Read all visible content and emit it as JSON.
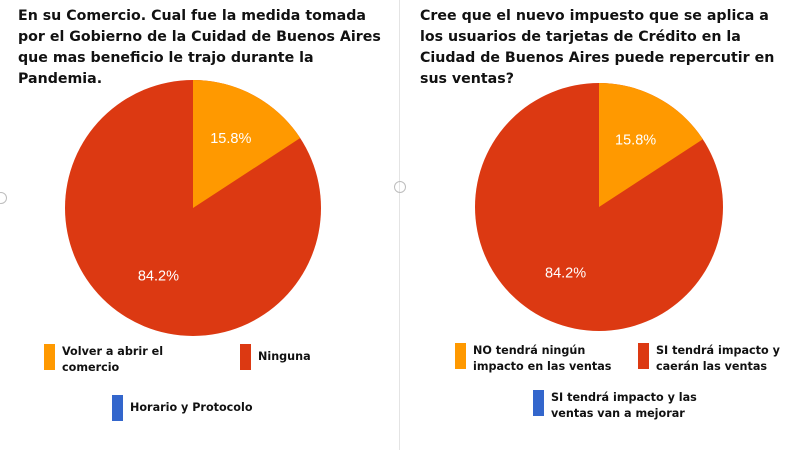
{
  "chart_data": [
    {
      "type": "pie",
      "title": "En su Comercio. Cual fue la medida tomada por el Gobierno de la Cuidad de Buenos Aires  que mas beneficio le trajo durante la Pandemia.",
      "categories": [
        "Volver a abrir el comercio",
        "Ninguna",
        "Horario y Protocolo"
      ],
      "values": [
        15.8,
        84.2,
        0
      ],
      "data_labels": [
        "15.8%",
        "84.2%",
        ""
      ],
      "colors": [
        "#ff9900",
        "#dc3912",
        "#3366cc"
      ],
      "legend": [
        "Volver a abrir el comercio",
        "Ninguna",
        "Horario y Protocolo"
      ],
      "legend_position": "bottom"
    },
    {
      "type": "pie",
      "title": "Cree que el nuevo impuesto que se aplica a los usuarios de tarjetas de Crédito en la Ciudad de Buenos Aires puede repercutir en sus ventas?",
      "categories": [
        "NO tendrá ningún impacto en las ventas",
        "SI tendrá impacto y caerán las ventas",
        "SI tendrá impacto y las ventas van a mejorar"
      ],
      "values": [
        15.8,
        84.2,
        0
      ],
      "data_labels": [
        "15.8%",
        "84.2%",
        ""
      ],
      "colors": [
        "#ff9900",
        "#dc3912",
        "#3366cc"
      ],
      "legend": [
        "NO tendrá ningún impacto en las ventas",
        "SI tendrá impacto y caerán las ventas",
        "SI tendrá impacto y las ventas van a mejorar"
      ],
      "legend_position": "bottom"
    }
  ]
}
